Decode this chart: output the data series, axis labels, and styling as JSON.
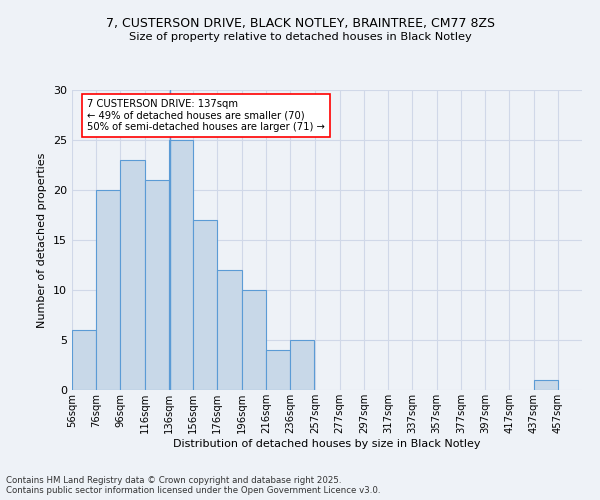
{
  "title_line1": "7, CUSTERSON DRIVE, BLACK NOTLEY, BRAINTREE, CM77 8ZS",
  "title_line2": "Size of property relative to detached houses in Black Notley",
  "xlabel": "Distribution of detached houses by size in Black Notley",
  "ylabel": "Number of detached properties",
  "bin_labels": [
    "56sqm",
    "76sqm",
    "96sqm",
    "116sqm",
    "136sqm",
    "156sqm",
    "176sqm",
    "196sqm",
    "216sqm",
    "236sqm",
    "257sqm",
    "277sqm",
    "297sqm",
    "317sqm",
    "337sqm",
    "357sqm",
    "377sqm",
    "397sqm",
    "417sqm",
    "437sqm",
    "457sqm"
  ],
  "bin_edges": [
    56,
    76,
    96,
    116,
    136,
    156,
    176,
    196,
    216,
    236,
    257,
    277,
    297,
    317,
    337,
    357,
    377,
    397,
    417,
    437,
    457
  ],
  "values": [
    6,
    20,
    23,
    21,
    25,
    17,
    12,
    10,
    4,
    5,
    0,
    0,
    0,
    0,
    0,
    0,
    0,
    0,
    0,
    1
  ],
  "bar_color": "#c8d8e8",
  "bar_edge_color": "#5b9bd5",
  "annotation_text": "7 CUSTERSON DRIVE: 137sqm\n← 49% of detached houses are smaller (70)\n50% of semi-detached houses are larger (71) →",
  "vline_x": 137,
  "vline_color": "#5b9bd5",
  "grid_color": "#d0d8e8",
  "background_color": "#eef2f7",
  "ylim": [
    0,
    30
  ],
  "yticks": [
    0,
    5,
    10,
    15,
    20,
    25,
    30
  ],
  "footer_line1": "Contains HM Land Registry data © Crown copyright and database right 2025.",
  "footer_line2": "Contains public sector information licensed under the Open Government Licence v3.0."
}
